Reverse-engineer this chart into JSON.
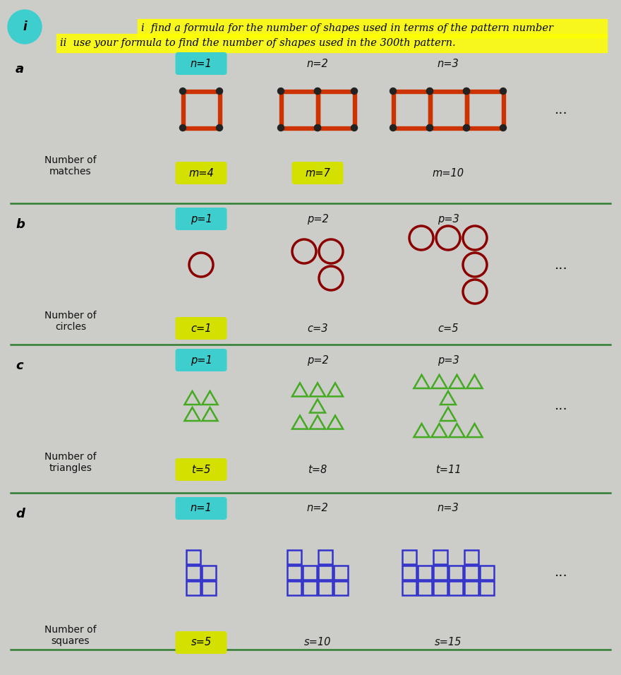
{
  "bg_color": "#ccccc8",
  "header_line1": "i  find a formula for the number of shapes used in terms of the pattern number",
  "header_line2": "ii  use your formula to find the number of shapes used in the 300th pattern.",
  "cyan_color": "#3ecece",
  "yellow_color": "#d4e000",
  "match_color": "#cc3300",
  "match_tip": "#222222",
  "circle_color": "#8b0000",
  "tri_color": "#44aa22",
  "sq_color": "#3333cc",
  "divider_color": "#2e7d32",
  "text_color": "#111111",
  "section_a": {
    "label": "a",
    "n_labels": [
      "n=1",
      "n=2",
      "n=3"
    ],
    "n_highlight": [
      true,
      false,
      false
    ],
    "count_labels": [
      "m=4",
      "m=7",
      "m=10"
    ],
    "count_highlight": [
      true,
      true,
      false
    ],
    "ylabel": "Number of\nmatches",
    "n_vals": [
      1,
      2,
      3
    ]
  },
  "section_b": {
    "label": "b",
    "n_labels": [
      "p=1",
      "p=2",
      "p=3"
    ],
    "n_highlight": [
      true,
      false,
      false
    ],
    "count_labels": [
      "c=1",
      "c=3",
      "c=5"
    ],
    "count_highlight": [
      true,
      false,
      false
    ],
    "ylabel": "Number of\ncircles",
    "n_vals": [
      1,
      2,
      3
    ]
  },
  "section_c": {
    "label": "c",
    "n_labels": [
      "p=1",
      "p=2",
      "p=3"
    ],
    "n_highlight": [
      true,
      false,
      false
    ],
    "count_labels": [
      "t=5",
      "t=8",
      "t=11"
    ],
    "count_highlight": [
      true,
      false,
      false
    ],
    "ylabel": "Number of\ntriangles",
    "n_vals": [
      1,
      2,
      3
    ]
  },
  "section_d": {
    "label": "d",
    "n_labels": [
      "n=1",
      "n=2",
      "n=3"
    ],
    "n_highlight": [
      true,
      false,
      false
    ],
    "count_labels": [
      "s=5",
      "s=10",
      "s=15"
    ],
    "count_highlight": [
      true,
      false,
      false
    ],
    "ylabel": "Number of\nsquares",
    "n_vals": [
      1,
      2,
      3
    ]
  }
}
